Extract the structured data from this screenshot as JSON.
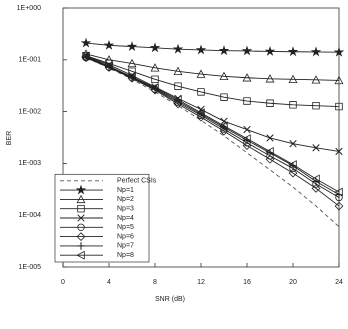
{
  "chart_data": {
    "type": "line",
    "xlabel": "SNR (dB)",
    "ylabel": "BER",
    "log_y": true,
    "x": [
      2,
      4,
      6,
      8,
      10,
      12,
      14,
      16,
      18,
      20,
      22,
      24
    ],
    "xlim": [
      0,
      24
    ],
    "xticks": [
      0,
      4,
      8,
      12,
      16,
      20,
      24
    ],
    "ylim": [
      1e-05,
      1
    ],
    "yticks": [
      {
        "value": 1e-05,
        "label": "1E-005"
      },
      {
        "value": 0.0001,
        "label": "1E-004"
      },
      {
        "value": 0.001,
        "label": "1E-003"
      },
      {
        "value": 0.01,
        "label": "1E-002"
      },
      {
        "value": 0.1,
        "label": "1E-001"
      },
      {
        "value": 1,
        "label": "1E+000"
      }
    ],
    "legend": "lower left",
    "series": [
      {
        "name": "Perfect CSIs",
        "color": "#555555",
        "linestyle": "dashed",
        "marker": "none",
        "values": [
          0.11,
          0.07,
          0.042,
          0.024,
          0.013,
          0.0068,
          0.0034,
          0.0016,
          0.00075,
          0.00035,
          0.00015,
          6e-05
        ]
      },
      {
        "name": "Np=1",
        "color": "#222222",
        "linestyle": "solid",
        "marker": "star",
        "values": [
          0.21,
          0.19,
          0.18,
          0.17,
          0.16,
          0.155,
          0.15,
          0.148,
          0.145,
          0.143,
          0.142,
          0.14
        ]
      },
      {
        "name": "Np=2",
        "color": "#222222",
        "linestyle": "solid",
        "marker": "triangle",
        "values": [
          0.13,
          0.1,
          0.085,
          0.07,
          0.06,
          0.053,
          0.048,
          0.045,
          0.043,
          0.042,
          0.041,
          0.04
        ]
      },
      {
        "name": "Np=3",
        "color": "#222222",
        "linestyle": "solid",
        "marker": "square",
        "values": [
          0.12,
          0.085,
          0.06,
          0.042,
          0.031,
          0.024,
          0.019,
          0.016,
          0.0145,
          0.0135,
          0.013,
          0.0125
        ]
      },
      {
        "name": "Np=4",
        "color": "#222222",
        "linestyle": "solid",
        "marker": "x",
        "values": [
          0.12,
          0.08,
          0.05,
          0.03,
          0.018,
          0.011,
          0.0065,
          0.0045,
          0.0031,
          0.0024,
          0.002,
          0.0017
        ]
      },
      {
        "name": "Np=5",
        "color": "#222222",
        "linestyle": "solid",
        "marker": "circle",
        "values": [
          0.11,
          0.072,
          0.045,
          0.027,
          0.015,
          0.0085,
          0.0046,
          0.0025,
          0.0014,
          0.0008,
          0.0004,
          0.00022
        ]
      },
      {
        "name": "Np=6",
        "color": "#222222",
        "linestyle": "solid",
        "marker": "diamond",
        "values": [
          0.11,
          0.071,
          0.044,
          0.026,
          0.014,
          0.0078,
          0.0042,
          0.0022,
          0.0012,
          0.00065,
          0.00033,
          0.00015
        ]
      },
      {
        "name": "Np=7",
        "color": "#222222",
        "linestyle": "solid",
        "marker": "plus",
        "values": [
          0.115,
          0.073,
          0.046,
          0.028,
          0.016,
          0.009,
          0.005,
          0.0028,
          0.0016,
          0.0009,
          0.00045,
          0.00025
        ]
      },
      {
        "name": "Np=8",
        "color": "#222222",
        "linestyle": "solid",
        "marker": "triangle-left",
        "values": [
          0.118,
          0.075,
          0.047,
          0.029,
          0.017,
          0.0095,
          0.0053,
          0.003,
          0.0017,
          0.00095,
          0.0005,
          0.00028
        ]
      }
    ]
  }
}
